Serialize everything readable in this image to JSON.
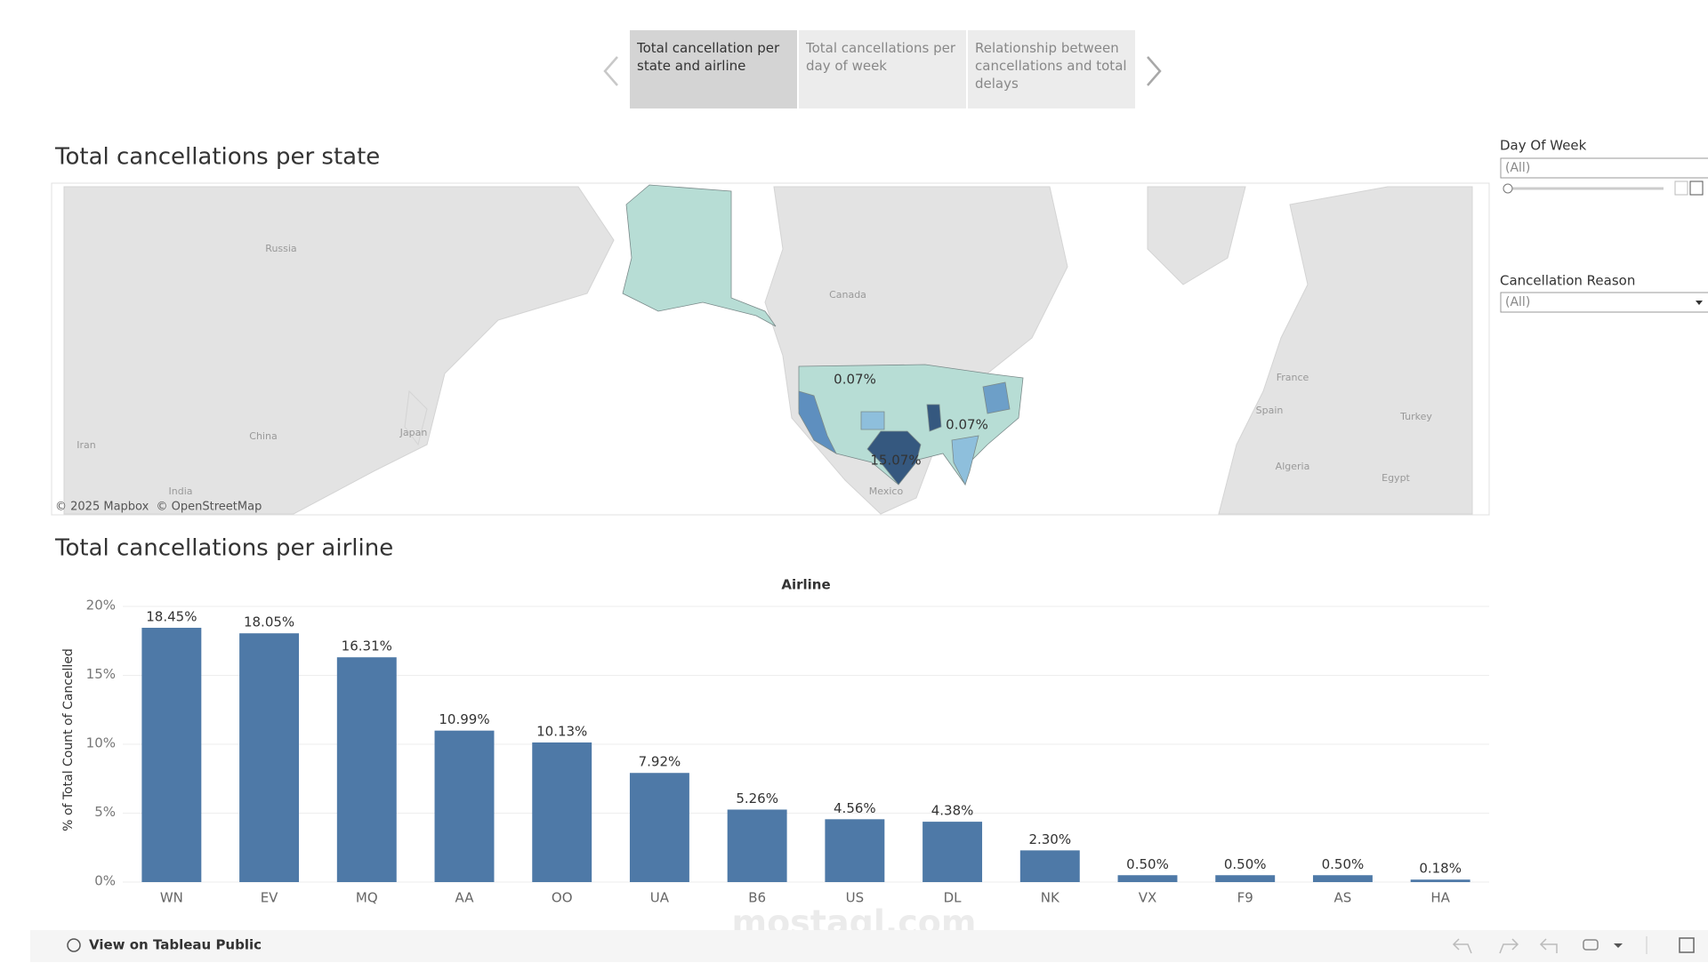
{
  "tabs": [
    "Total cancellation per state and airline",
    "Total cancellations per day of week",
    "Relationship between cancellations and total delays"
  ],
  "map": {
    "title": "Total cancellations per state",
    "place_labels": [
      "Russia",
      "Canada",
      "China",
      "Japan",
      "Iran",
      "India",
      "Mexico",
      "France",
      "Spain",
      "Turkey",
      "Algeria",
      "Egypt"
    ],
    "value_labels": [
      "0.07%",
      "0.07%",
      "15.07%"
    ],
    "attribution": "© 2025 Mapbox  © OpenStreetMap"
  },
  "filters": [
    {
      "label": "Day Of Week",
      "value": "(All)"
    },
    {
      "label": "Cancellation Reason",
      "value": "(All)"
    }
  ],
  "chart_data": {
    "type": "bar",
    "title": "Total cancellations per airline",
    "x_header": "Airline",
    "y_label": "% of Total Count of Cancelled",
    "categories": [
      "WN",
      "EV",
      "MQ",
      "AA",
      "OO",
      "UA",
      "B6",
      "US",
      "DL",
      "NK",
      "VX",
      "F9",
      "AS",
      "HA"
    ],
    "values": [
      18.45,
      18.05,
      16.31,
      10.99,
      10.13,
      7.92,
      5.26,
      4.56,
      4.38,
      2.3,
      0.5,
      0.5,
      0.5,
      0.18
    ],
    "value_labels": [
      "18.45%",
      "18.05%",
      "16.31%",
      "10.99%",
      "10.13%",
      "7.92%",
      "5.26%",
      "4.56%",
      "4.38%",
      "2.30%",
      "0.50%",
      "0.50%",
      "0.50%",
      "0.18%"
    ],
    "color": "#4e79a7",
    "ylim": [
      0,
      20
    ],
    "yticks": [
      {
        "value": 0,
        "label": "0%"
      },
      {
        "value": 5,
        "label": "5%"
      },
      {
        "value": 10,
        "label": "10%"
      },
      {
        "value": 15,
        "label": "15%"
      },
      {
        "value": 20,
        "label": "20%"
      }
    ],
    "grid": true
  },
  "footer": {
    "link": "View on Tableau Public"
  },
  "watermark": "mostaql.com"
}
